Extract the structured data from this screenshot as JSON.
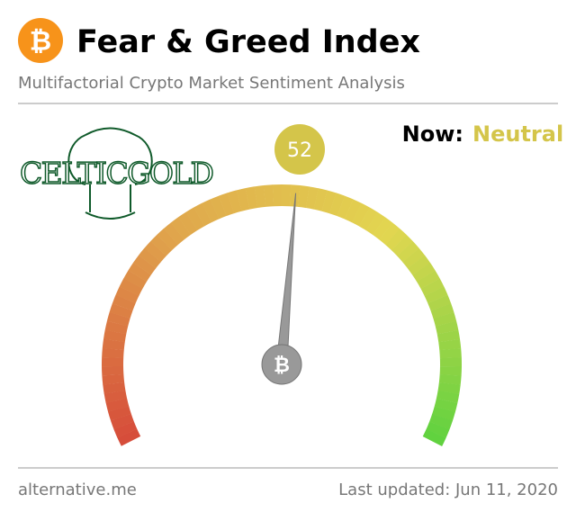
{
  "chart_data": {
    "type": "gauge",
    "title": "Fear & Greed Index",
    "subtitle": "Multifactorial Crypto Market Sentiment Analysis",
    "logo": "CELTICGOLD",
    "now_label": "Now:",
    "classification": "Neutral",
    "classification_color": "#d4c54a",
    "value": 52,
    "ylim": [
      0,
      100
    ],
    "colors": [
      "#d64b3a",
      "#e0a64c",
      "#e2d650",
      "#5fd23f"
    ],
    "source": "alternative.me",
    "updated": "Last updated: Jun 11, 2020"
  }
}
